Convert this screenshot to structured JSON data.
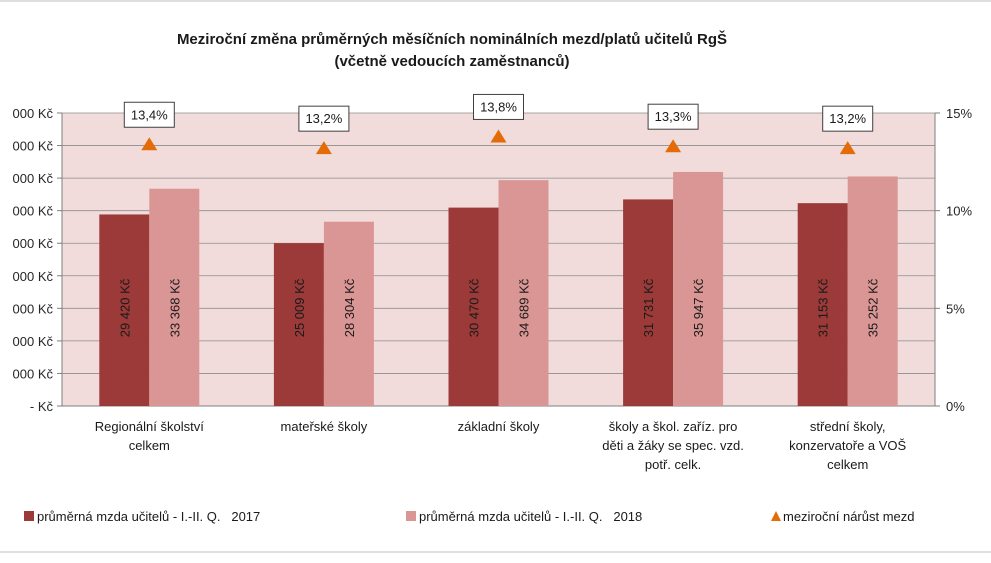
{
  "chart_data": {
    "type": "bar",
    "title_line1": "Meziroční změna průměrných měsíčních nominálních mezd/platů učitelů RgŠ",
    "title_line2": "(včetně vedoucích zaměstnanců)",
    "categories": [
      [
        "Regionální školství",
        "celkem"
      ],
      [
        "mateřské školy"
      ],
      [
        "základní školy"
      ],
      [
        "školy a škol. zaříz. pro",
        "děti a žáky se spec. vzd.",
        "potř. celk."
      ],
      [
        "střední školy,",
        "konzervatoře a VOŠ",
        "celkem"
      ]
    ],
    "series": [
      {
        "name": "průměrná mzda učitelů - I.-II. Q.   2017",
        "color": "#9b3a38",
        "values": [
          29420,
          25009,
          30470,
          31731,
          31153
        ],
        "labels": [
          "29 420 Kč",
          "25 009 Kč",
          "30 470 Kč",
          "31 731 Kč",
          "31 153 Kč"
        ]
      },
      {
        "name": "průměrná mzda učitelů - I.-II. Q.   2018",
        "color": "#d99694",
        "values": [
          33368,
          28304,
          34689,
          35947,
          35252
        ],
        "labels": [
          "33 368 Kč",
          "28 304 Kč",
          "34 689 Kč",
          "35 947 Kč",
          "35 252 Kč"
        ]
      },
      {
        "name": "meziroční nárůst mezd",
        "color": "#e36c09",
        "axis": "right",
        "values": [
          13.4,
          13.2,
          13.8,
          13.3,
          13.2
        ],
        "labels": [
          "13,4%",
          "13,2%",
          "13,8%",
          "13,3%",
          "13,2%"
        ]
      }
    ],
    "left_axis": {
      "ylim": [
        0,
        45000
      ],
      "ticks": [
        0,
        5000,
        10000,
        15000,
        20000,
        25000,
        30000,
        35000,
        40000,
        45000
      ],
      "tick_labels": [
        "- Kč",
        "000 Kč",
        "000 Kč",
        "000 Kč",
        "000 Kč",
        "000 Kč",
        "000 Kč",
        "000 Kč",
        "000 Kč",
        "000 Kč"
      ]
    },
    "right_axis": {
      "ylim": [
        0,
        15
      ],
      "ticks": [
        0,
        5,
        10,
        15
      ],
      "tick_labels": [
        "0%",
        "5%",
        "10%",
        "15%"
      ]
    },
    "plot_background": "#f2dcdb",
    "grid": true,
    "legend_position": "bottom"
  }
}
